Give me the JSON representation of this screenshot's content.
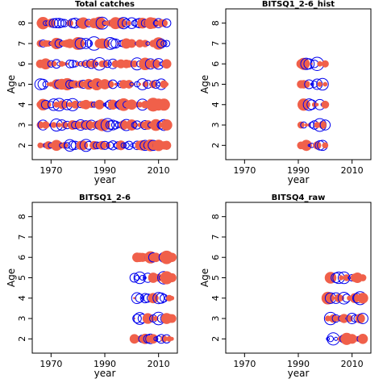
{
  "chart_data": [
    {
      "type": "scatter",
      "title": "Total catches",
      "xlabel": "year",
      "ylabel": "Age",
      "xlim": [
        1963,
        2017
      ],
      "ylim": [
        1.3,
        8.7
      ],
      "xticks": [
        "1970",
        "1990",
        "2010"
      ],
      "yticks": [
        "2",
        "3",
        "4",
        "5",
        "6",
        "7",
        "8"
      ],
      "encoding": "bubble size = |residual|; filled red = positive, open blue = negative",
      "years": [
        1966,
        2013
      ],
      "ages": [
        2,
        3,
        4,
        5,
        6,
        7,
        8
      ]
    },
    {
      "type": "scatter",
      "title": "BITSQ1_2-6_hist",
      "xlabel": "year",
      "ylabel": "Age",
      "xlim": [
        1963,
        2017
      ],
      "ylim": [
        1.3,
        8.7
      ],
      "xticks": [
        "1970",
        "1990",
        "2010"
      ],
      "yticks": [
        "2",
        "3",
        "4",
        "5",
        "6",
        "7",
        "8"
      ],
      "encoding": "bubble size = |residual|; filled red = positive, open blue = negative",
      "years": [
        1991,
        2000
      ],
      "ages": [
        2,
        3,
        4,
        5,
        6
      ]
    },
    {
      "type": "scatter",
      "title": "BITSQ1_2-6",
      "xlabel": "year",
      "ylabel": "Age",
      "xlim": [
        1963,
        2017
      ],
      "ylim": [
        1.3,
        8.7
      ],
      "xticks": [
        "1970",
        "1990",
        "2010"
      ],
      "yticks": [
        "2",
        "3",
        "4",
        "5",
        "6",
        "7",
        "8"
      ],
      "encoding": "bubble size = |residual|; filled red = positive, open blue = negative",
      "years": [
        2001,
        2015
      ],
      "ages": [
        2,
        3,
        4,
        5,
        6
      ]
    },
    {
      "type": "scatter",
      "title": "BITSQ4_raw",
      "xlabel": "year",
      "ylabel": "Age",
      "xlim": [
        1963,
        2017
      ],
      "ylim": [
        1.3,
        8.7
      ],
      "xticks": [
        "1970",
        "1990",
        "2010"
      ],
      "yticks": [
        "2",
        "3",
        "4",
        "5",
        "6",
        "7",
        "8"
      ],
      "encoding": "bubble size = |residual|; filled red = positive, open blue = negative",
      "years": [
        2001,
        2014
      ],
      "ages": [
        2,
        3,
        4,
        5
      ]
    }
  ],
  "colors": {
    "positive": "#F0604A",
    "negative": "#0000EE",
    "frame": "#000000"
  }
}
